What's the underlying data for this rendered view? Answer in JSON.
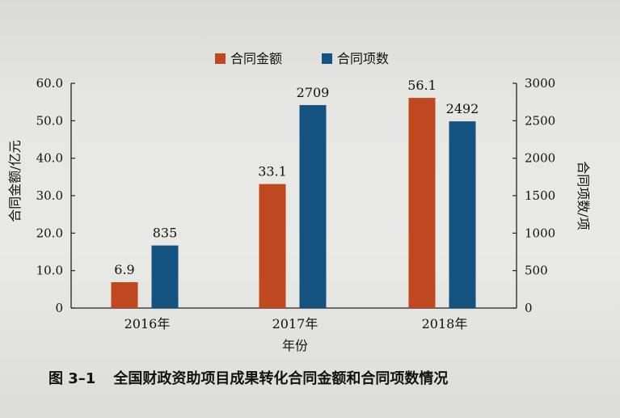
{
  "chart_data": {
    "type": "bar",
    "categories": [
      "2016年",
      "2017年",
      "2018年"
    ],
    "series": [
      {
        "name": "合同金额",
        "values": [
          6.9,
          33.1,
          56.1
        ],
        "color": "#c0481f",
        "axis": "left"
      },
      {
        "name": "合同项数",
        "values": [
          835,
          2709,
          2492
        ],
        "color": "#14527f",
        "axis": "right"
      }
    ],
    "data_labels": [
      [
        "6.9",
        "33.1",
        "56.1"
      ],
      [
        "835",
        "2709",
        "2492"
      ]
    ],
    "xlabel": "年份",
    "ylabel_left": "合同金额/亿元",
    "ylabel_right": "合同项数/项",
    "ylim_left": [
      0,
      60
    ],
    "ylim_right": [
      0,
      3000
    ],
    "yticks_left": [
      "0",
      "10.0",
      "20.0",
      "30.0",
      "40.0",
      "50.0",
      "60.0"
    ],
    "yticks_right": [
      "0",
      "500",
      "1000",
      "1500",
      "2000",
      "2500",
      "3000"
    ],
    "legend_position": "top-center",
    "grid": false
  },
  "caption": {
    "number": "图 3–1",
    "text": "全国财政资助项目成果转化合同金额和合同项数情况"
  }
}
